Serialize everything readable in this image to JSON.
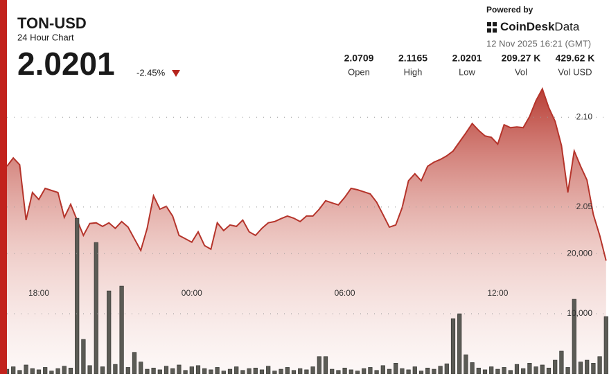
{
  "header": {
    "symbol": "TON-USD",
    "subtitle": "24 Hour Chart",
    "price": "2.0201",
    "change": "-2.45%",
    "powered_by": "Powered by",
    "brand": "CoinDesk",
    "brand_suffix": "Data",
    "timestamp": "12 Nov 2025 16:21 (GMT)",
    "stats": [
      {
        "value": "2.0709",
        "label": "Open"
      },
      {
        "value": "2.1165",
        "label": "High"
      },
      {
        "value": "2.0201",
        "label": "Low"
      },
      {
        "value": "209.27 K",
        "label": "Vol"
      },
      {
        "value": "429.62 K",
        "label": "Vol USD"
      }
    ]
  },
  "chart_data": [
    {
      "type": "area",
      "color": "#b5342b",
      "categories": [
        null,
        null,
        null,
        null,
        null,
        "18:00",
        null,
        null,
        null,
        null,
        null,
        null,
        null,
        null,
        null,
        null,
        null,
        null,
        null,
        null,
        null,
        null,
        null,
        null,
        null,
        null,
        null,
        null,
        null,
        "00:00",
        null,
        null,
        null,
        null,
        null,
        null,
        null,
        null,
        null,
        null,
        null,
        null,
        null,
        null,
        null,
        null,
        null,
        null,
        null,
        null,
        null,
        null,
        null,
        "06:00",
        null,
        null,
        null,
        null,
        null,
        null,
        null,
        null,
        null,
        null,
        null,
        null,
        null,
        null,
        null,
        null,
        null,
        null,
        null,
        null,
        null,
        null,
        null,
        "12:00",
        null,
        null,
        null,
        null,
        null,
        null,
        null,
        null,
        null,
        null,
        null,
        null,
        null,
        null,
        null,
        null,
        null
      ],
      "values": [
        2.0727,
        2.0773,
        2.0735,
        2.0427,
        2.0581,
        2.0542,
        2.0604,
        2.0592,
        2.0581,
        2.0442,
        2.0515,
        2.0427,
        2.0342,
        2.0408,
        2.0412,
        2.0392,
        2.0412,
        2.0381,
        2.0419,
        2.0388,
        2.0323,
        2.0258,
        2.0381,
        2.0562,
        2.0488,
        2.0504,
        2.045,
        2.0342,
        2.0323,
        2.0304,
        2.0362,
        2.0285,
        2.0265,
        2.0412,
        2.0369,
        2.04,
        2.0392,
        2.0427,
        2.0362,
        2.0342,
        2.0381,
        2.0412,
        2.0419,
        2.0435,
        2.045,
        2.0438,
        2.0419,
        2.045,
        2.045,
        2.0488,
        2.0535,
        2.0523,
        2.0512,
        2.0554,
        2.0604,
        2.0596,
        2.0585,
        2.0573,
        2.0527,
        2.0458,
        2.0388,
        2.04,
        2.0496,
        2.0646,
        2.0685,
        2.0646,
        2.0727,
        2.075,
        2.0765,
        2.0785,
        2.0812,
        2.0862,
        2.0912,
        2.0965,
        2.0927,
        2.0896,
        2.0888,
        2.085,
        2.0958,
        2.0942,
        2.0946,
        2.0942,
        2.1004,
        2.1092,
        2.1158,
        2.1054,
        2.0977,
        2.0842,
        2.0581,
        2.0812,
        2.0727,
        2.065,
        2.0458,
        2.0342,
        2.0201
      ],
      "ylim": [
        1.957,
        2.119
      ],
      "yticks": [
        {
          "value": 2.1,
          "label": "2.10"
        },
        2.05
      ]
    },
    {
      "type": "bar",
      "color": "#5b5b55",
      "values": [
        800,
        1200,
        600,
        1500,
        900,
        700,
        1100,
        500,
        900,
        1300,
        1000,
        25862,
        5747,
        1400,
        21839,
        1200,
        13793,
        1600,
        14598,
        1100,
        3600,
        2000,
        800,
        1000,
        700,
        1300,
        900,
        1500,
        600,
        1200,
        1400,
        900,
        700,
        1100,
        500,
        800,
        1200,
        600,
        900,
        1000,
        700,
        1300,
        500,
        800,
        1100,
        600,
        900,
        700,
        1200,
        2900,
        2900,
        800,
        600,
        1000,
        700,
        500,
        900,
        1100,
        600,
        1400,
        800,
        1800,
        900,
        700,
        1200,
        500,
        1000,
        800,
        1300,
        1700,
        9195,
        10000,
        3200,
        1900,
        1000,
        700,
        1200,
        800,
        1100,
        600,
        1600,
        900,
        1800,
        1200,
        1500,
        1000,
        2300,
        3800,
        1100,
        12414,
        2000,
        2300,
        1800,
        2900,
        9540
      ],
      "ylim": [
        0,
        48300
      ],
      "yticks": [
        {
          "value": 20000,
          "label": "20,000"
        },
        {
          "value": 10000,
          "label": "10,000"
        }
      ]
    }
  ]
}
